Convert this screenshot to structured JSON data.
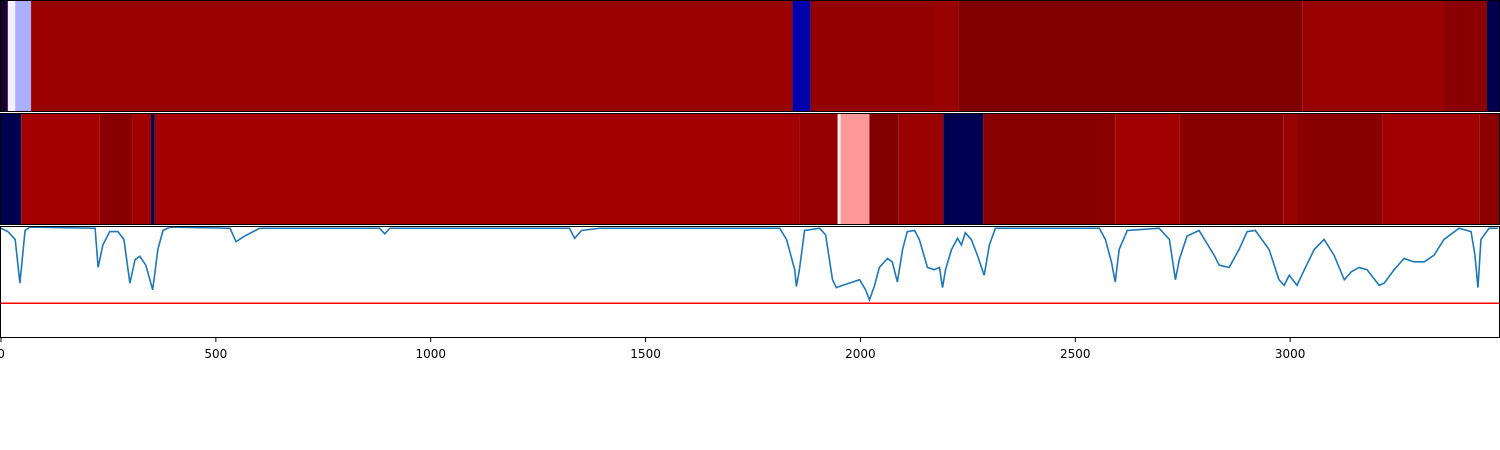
{
  "chart_data": [
    {
      "type": "strip",
      "xlim": [
        0,
        3486
      ],
      "segments": [
        {
          "start": 0,
          "end": 16,
          "color": "#1a0030"
        },
        {
          "start": 16,
          "end": 33,
          "color": "#f4f0ff"
        },
        {
          "start": 33,
          "end": 70,
          "color": "#aab0ff"
        },
        {
          "start": 70,
          "end": 1842,
          "color": "#990000"
        },
        {
          "start": 1842,
          "end": 1884,
          "color": "#0000aa"
        },
        {
          "start": 1884,
          "end": 2170,
          "color": "#920000"
        },
        {
          "start": 2170,
          "end": 2228,
          "color": "#990000"
        },
        {
          "start": 2228,
          "end": 3028,
          "color": "#800000"
        },
        {
          "start": 3028,
          "end": 3358,
          "color": "#990000"
        },
        {
          "start": 3358,
          "end": 3458,
          "color": "#8a0000"
        },
        {
          "start": 3458,
          "end": 3486,
          "color": "#000050"
        }
      ]
    },
    {
      "type": "strip",
      "xlim": [
        0,
        3486
      ],
      "segments": [
        {
          "start": 0,
          "end": 47,
          "color": "#000050"
        },
        {
          "start": 47,
          "end": 230,
          "color": "#a50000"
        },
        {
          "start": 230,
          "end": 307,
          "color": "#8a0000"
        },
        {
          "start": 307,
          "end": 349,
          "color": "#a00000"
        },
        {
          "start": 349,
          "end": 358,
          "color": "#000050"
        },
        {
          "start": 358,
          "end": 1858,
          "color": "#a50000"
        },
        {
          "start": 1858,
          "end": 1947,
          "color": "#960000"
        },
        {
          "start": 1947,
          "end": 1954,
          "color": "#fff0f0"
        },
        {
          "start": 1954,
          "end": 2021,
          "color": "#ff9999"
        },
        {
          "start": 2021,
          "end": 2088,
          "color": "#800000"
        },
        {
          "start": 2088,
          "end": 2193,
          "color": "#990000"
        },
        {
          "start": 2193,
          "end": 2286,
          "color": "#000050"
        },
        {
          "start": 2286,
          "end": 2593,
          "color": "#8a0000"
        },
        {
          "start": 2593,
          "end": 2742,
          "color": "#a00000"
        },
        {
          "start": 2742,
          "end": 2984,
          "color": "#8a0000"
        },
        {
          "start": 2984,
          "end": 3016,
          "color": "#990000"
        },
        {
          "start": 3016,
          "end": 3214,
          "color": "#8a0000"
        },
        {
          "start": 3214,
          "end": 3440,
          "color": "#a00000"
        },
        {
          "start": 3440,
          "end": 3486,
          "color": "#8a0000"
        }
      ]
    },
    {
      "type": "line",
      "xlim": [
        0,
        3486
      ],
      "ylim": [
        0,
        1
      ],
      "xticks": [
        0,
        500,
        1000,
        1500,
        2000,
        2500,
        3000
      ],
      "threshold": {
        "value": 0.31,
        "color": "#ff0000"
      },
      "x": [
        0,
        16,
        33,
        44,
        56,
        67,
        219,
        226,
        237,
        253,
        272,
        286,
        300,
        312,
        323,
        337,
        353,
        365,
        377,
        393,
        533,
        547,
        567,
        602,
        881,
        893,
        905,
        1323,
        1335,
        1351,
        1393,
        1812,
        1828,
        1847,
        1851,
        1858,
        1870,
        1905,
        1919,
        1935,
        1944,
        1958,
        1974,
        1998,
        2012,
        2021,
        2033,
        2044,
        2063,
        2074,
        2086,
        2098,
        2109,
        2126,
        2137,
        2156,
        2172,
        2184,
        2191,
        2198,
        2212,
        2226,
        2235,
        2244,
        2258,
        2272,
        2288,
        2300,
        2314,
        2556,
        2570,
        2584,
        2593,
        2602,
        2621,
        2695,
        2719,
        2733,
        2742,
        2760,
        2788,
        2823,
        2835,
        2858,
        2881,
        2900,
        2919,
        2951,
        2974,
        2986,
        2998,
        3016,
        3033,
        3056,
        3079,
        3102,
        3126,
        3142,
        3160,
        3179,
        3207,
        3219,
        3242,
        3265,
        3288,
        3312,
        3335,
        3358,
        3393,
        3421,
        3430,
        3437,
        3444,
        3463,
        3484
      ],
      "series": [
        {
          "color": "#1f77b4",
          "values": [
            0.98,
            0.95,
            0.88,
            0.49,
            0.96,
            0.99,
            0.98,
            0.63,
            0.83,
            0.95,
            0.95,
            0.88,
            0.49,
            0.7,
            0.73,
            0.65,
            0.43,
            0.79,
            0.96,
            0.99,
            0.98,
            0.86,
            0.91,
            0.98,
            0.98,
            0.93,
            0.98,
            0.98,
            0.89,
            0.96,
            0.98,
            0.98,
            0.88,
            0.61,
            0.46,
            0.61,
            0.96,
            0.98,
            0.92,
            0.52,
            0.45,
            0.47,
            0.49,
            0.52,
            0.43,
            0.34,
            0.47,
            0.63,
            0.71,
            0.68,
            0.5,
            0.79,
            0.95,
            0.96,
            0.88,
            0.63,
            0.61,
            0.63,
            0.45,
            0.61,
            0.79,
            0.89,
            0.83,
            0.94,
            0.88,
            0.74,
            0.56,
            0.83,
            0.98,
            0.98,
            0.88,
            0.68,
            0.5,
            0.79,
            0.96,
            0.98,
            0.88,
            0.52,
            0.7,
            0.91,
            0.96,
            0.74,
            0.65,
            0.63,
            0.79,
            0.95,
            0.96,
            0.79,
            0.52,
            0.47,
            0.56,
            0.47,
            0.61,
            0.79,
            0.88,
            0.74,
            0.52,
            0.59,
            0.63,
            0.61,
            0.47,
            0.49,
            0.61,
            0.71,
            0.68,
            0.68,
            0.74,
            0.88,
            0.98,
            0.95,
            0.74,
            0.45,
            0.88,
            0.98,
            0.98
          ]
        }
      ]
    }
  ]
}
